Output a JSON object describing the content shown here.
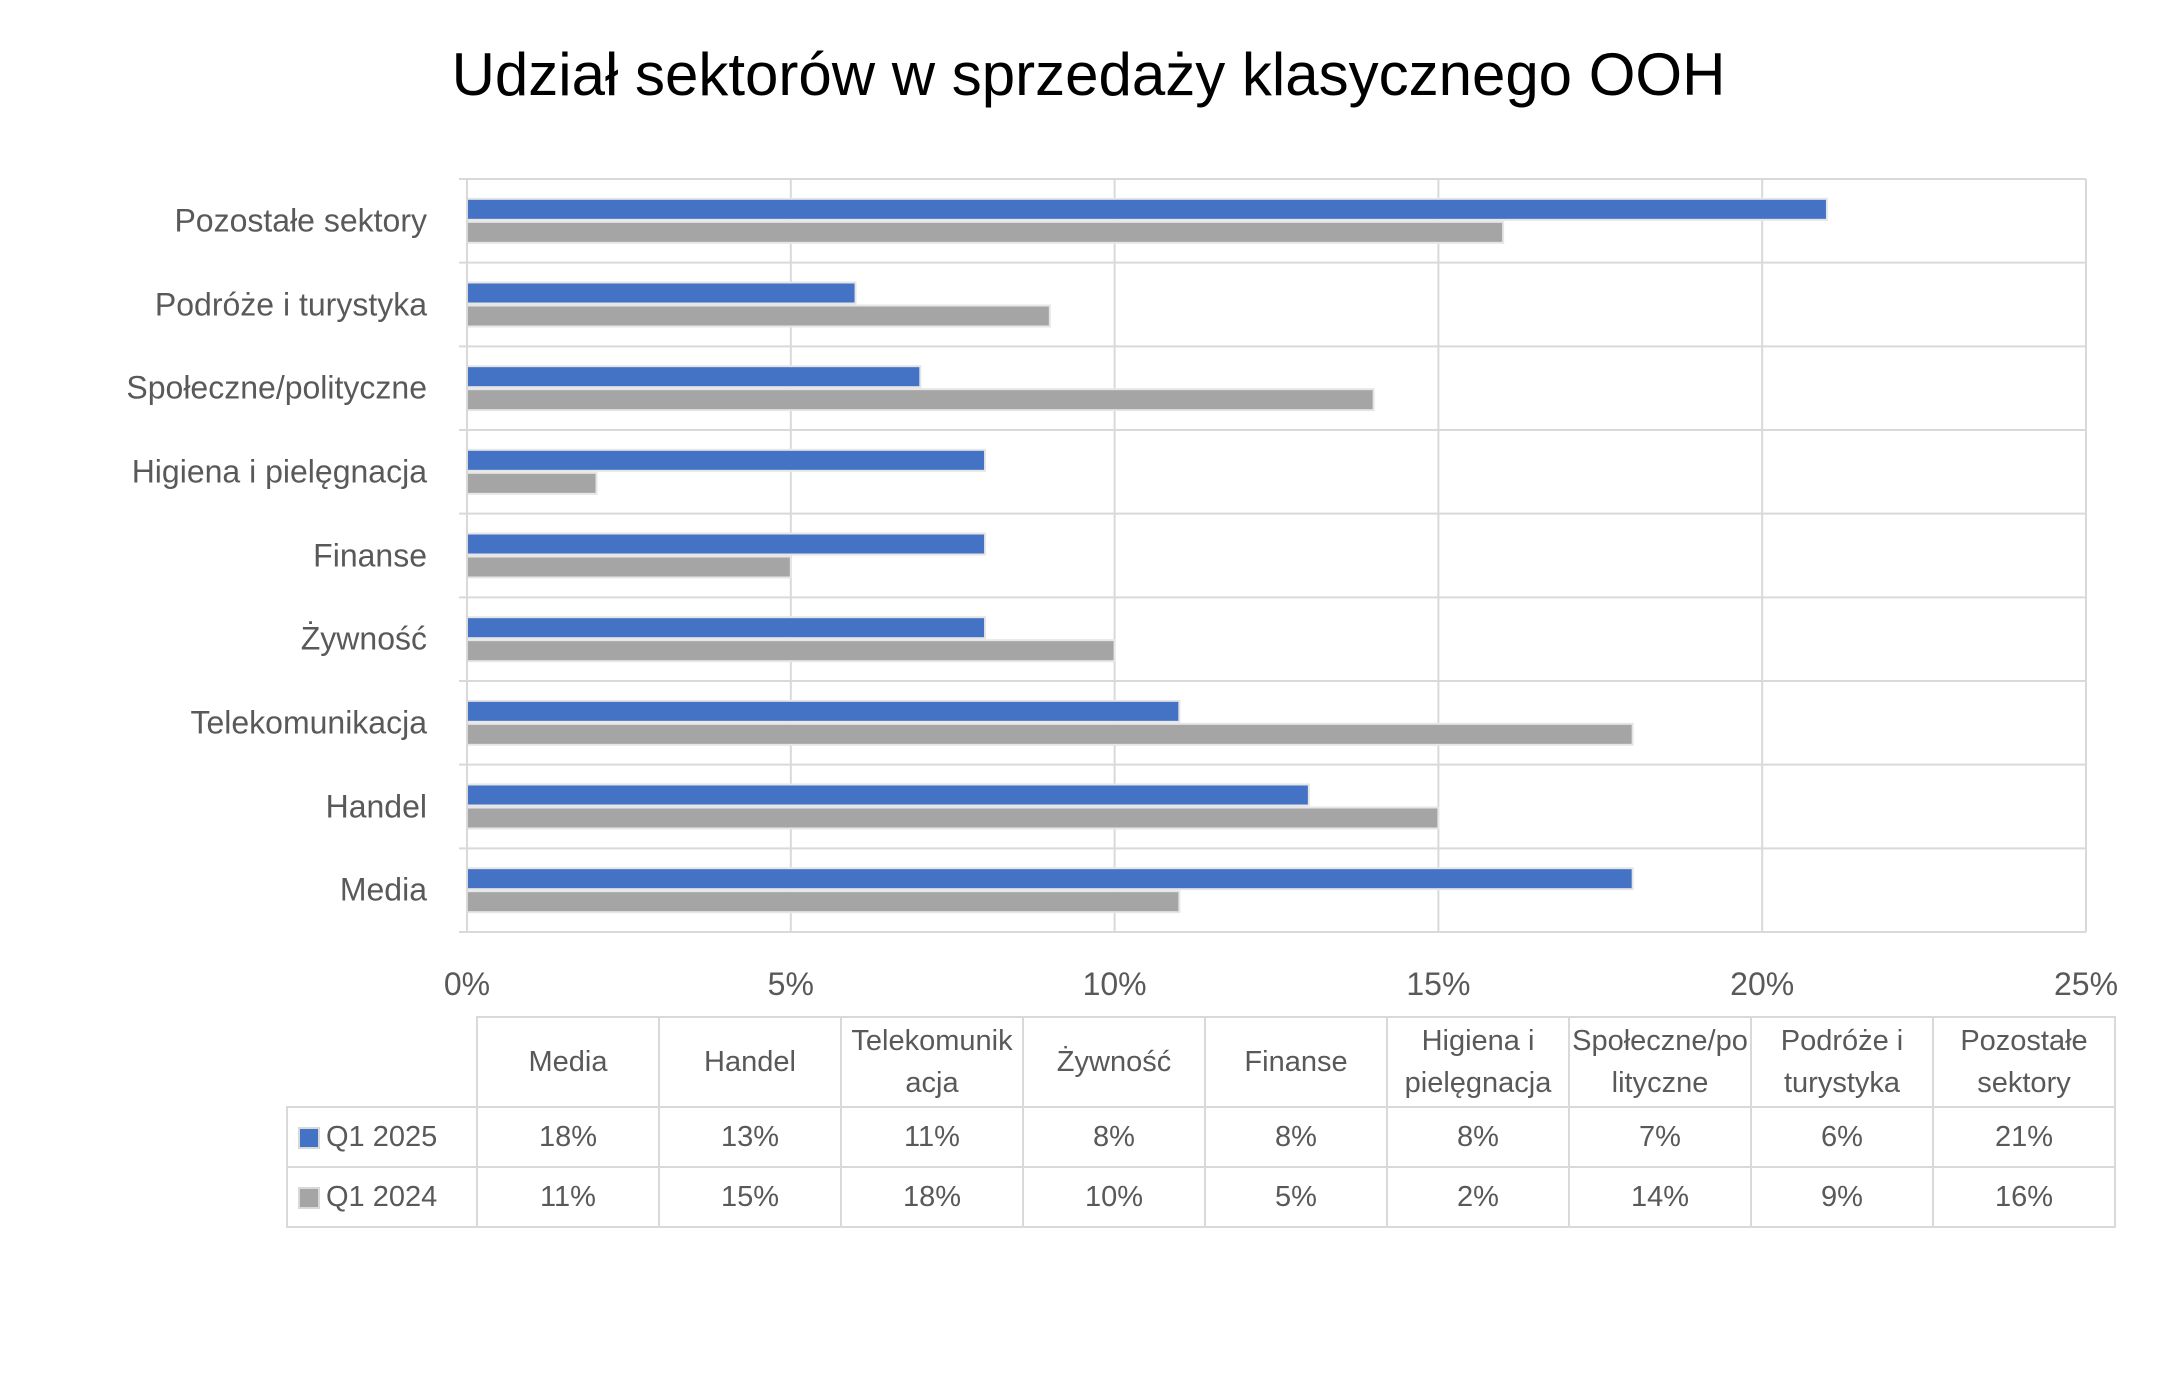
{
  "chart_data": {
    "type": "bar",
    "orientation": "horizontal",
    "title": "Udział sektorów w sprzedaży klasycznego OOH",
    "categories": [
      "Media",
      "Handel",
      "Telekomunikacja",
      "Żywność",
      "Finanse",
      "Higiena i pielęgnacja",
      "Społeczne/polityczne",
      "Podróże i turystyka",
      "Pozostałe sektory"
    ],
    "series": [
      {
        "name": "Q1 2025",
        "color": "#4472C4",
        "values": [
          18,
          13,
          11,
          8,
          8,
          8,
          7,
          6,
          21
        ],
        "labels": [
          "18%",
          "13%",
          "11%",
          "8%",
          "8%",
          "8%",
          "7%",
          "6%",
          "21%"
        ]
      },
      {
        "name": "Q1 2024",
        "color": "#A5A5A5",
        "values": [
          11,
          15,
          18,
          10,
          5,
          2,
          14,
          9,
          16
        ],
        "labels": [
          "11%",
          "15%",
          "18%",
          "10%",
          "5%",
          "2%",
          "14%",
          "9%",
          "16%"
        ]
      }
    ],
    "xlim": [
      0,
      25
    ],
    "xticks": [
      0,
      5,
      10,
      15,
      20,
      25
    ],
    "xtick_labels": [
      "0%",
      "5%",
      "10%",
      "15%",
      "20%",
      "25%"
    ],
    "xlabel": "",
    "ylabel": "",
    "grid": true,
    "legend": "data-table-below"
  }
}
